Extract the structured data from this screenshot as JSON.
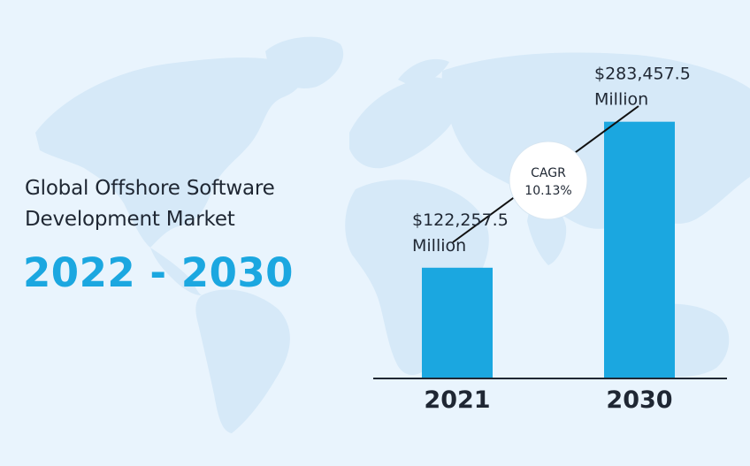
{
  "headline": {
    "line1": "Global Offshore Software",
    "line2": "Development Market",
    "period": "2022 - 2030"
  },
  "colors": {
    "background": "#e9f4fd",
    "map": "#d6e9f8",
    "bar": "#1ba7e0",
    "accent_text": "#1ba7e0",
    "text": "#1f2733"
  },
  "chart_data": {
    "type": "bar",
    "categories": [
      "2021",
      "2030"
    ],
    "values": [
      122257.5,
      283457.5
    ],
    "value_labels": [
      [
        "$122,257.5",
        "Million"
      ],
      [
        "$283,457.5",
        "Million"
      ]
    ],
    "annotation": {
      "title": "CAGR",
      "value": "10.13%"
    },
    "ylim": [
      0,
      330000
    ],
    "grid": false,
    "legend": "none"
  }
}
